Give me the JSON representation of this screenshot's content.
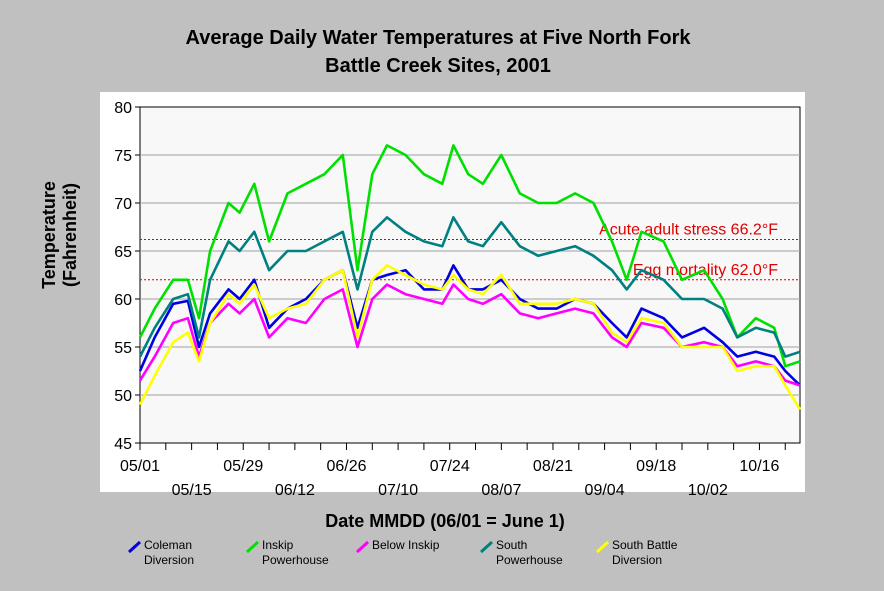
{
  "chart_data": {
    "type": "line",
    "title_line1": "Average Daily Water Temperatures at Five North Fork",
    "title_line2": "Battle Creek Sites, 2001",
    "xlabel": "Date MMDD (06/01 = June 1)",
    "ylabel_line1": "Temperature",
    "ylabel_line2": "(Fahrenheit)",
    "ylim": [
      45,
      80
    ],
    "yticks": [
      45,
      50,
      55,
      60,
      65,
      70,
      75,
      80
    ],
    "xlim": [
      "05/01",
      "10/27"
    ],
    "xticks_upper": [
      "05/01",
      "05/29",
      "06/26",
      "07/24",
      "08/21",
      "09/18",
      "10/16"
    ],
    "xticks_lower": [
      "05/15",
      "06/12",
      "07/10",
      "08/07",
      "09/04",
      "10/02"
    ],
    "grid": true,
    "reference_lines": [
      {
        "label": "Acute adult stress 66.2°F",
        "value": 66.2,
        "color": "#e00000"
      },
      {
        "label": "Egg mortality 62.0°F",
        "value": 62.0,
        "color": "#e00000"
      }
    ],
    "series": [
      {
        "name_line1": "Coleman",
        "name_line2": "Diversion",
        "color": "#0000e0",
        "x": [
          "05/01",
          "05/05",
          "05/10",
          "05/14",
          "05/17",
          "05/20",
          "05/25",
          "05/28",
          "06/01",
          "06/05",
          "06/10",
          "06/15",
          "06/20",
          "06/25",
          "06/29",
          "07/03",
          "07/07",
          "07/12",
          "07/17",
          "07/22",
          "07/25",
          "07/29",
          "08/02",
          "08/07",
          "08/12",
          "08/17",
          "08/22",
          "08/27",
          "09/01",
          "09/06",
          "09/10",
          "09/14",
          "09/20",
          "09/25",
          "10/01",
          "10/06",
          "10/10",
          "10/15",
          "10/20",
          "10/23",
          "10/27"
        ],
        "y": [
          52.5,
          56,
          59.5,
          59.8,
          55,
          58.5,
          61,
          60,
          62,
          57,
          59,
          60,
          62,
          63,
          57,
          62,
          62.5,
          63,
          61,
          61,
          63.5,
          61,
          61,
          62,
          60,
          59,
          59,
          60,
          59.5,
          57.5,
          56,
          59,
          58,
          56,
          57,
          55.5,
          54,
          54.5,
          54,
          52.5,
          51
        ]
      },
      {
        "name_line1": "Inskip",
        "name_line2": "Powerhouse",
        "color": "#00e000",
        "x": [
          "05/01",
          "05/05",
          "05/10",
          "05/14",
          "05/17",
          "05/20",
          "05/25",
          "05/28",
          "06/01",
          "06/05",
          "06/10",
          "06/15",
          "06/20",
          "06/25",
          "06/29",
          "07/03",
          "07/07",
          "07/12",
          "07/17",
          "07/22",
          "07/25",
          "07/29",
          "08/02",
          "08/07",
          "08/12",
          "08/17",
          "08/22",
          "08/27",
          "09/01",
          "09/06",
          "09/10",
          "09/14",
          "09/20",
          "09/25",
          "10/01",
          "10/06",
          "10/10",
          "10/15",
          "10/20",
          "10/23",
          "10/27"
        ],
        "y": [
          56,
          59,
          62,
          62,
          58,
          65,
          70,
          69,
          72,
          66,
          71,
          72,
          73,
          75,
          63,
          73,
          76,
          75,
          73,
          72,
          76,
          73,
          72,
          75,
          71,
          70,
          70,
          71,
          70,
          66,
          62,
          67,
          66,
          62,
          63,
          60,
          56,
          58,
          57,
          53,
          53.5
        ]
      },
      {
        "name_line1": "Below Inskip",
        "name_line2": "",
        "color": "#ff00ff",
        "x": [
          "05/01",
          "05/05",
          "05/10",
          "05/14",
          "05/17",
          "05/20",
          "05/25",
          "05/28",
          "06/01",
          "06/05",
          "06/10",
          "06/15",
          "06/20",
          "06/25",
          "06/29",
          "07/03",
          "07/07",
          "07/12",
          "07/17",
          "07/22",
          "07/25",
          "07/29",
          "08/02",
          "08/07",
          "08/12",
          "08/17",
          "08/22",
          "08/27",
          "09/01",
          "09/06",
          "09/10",
          "09/14",
          "09/20",
          "09/25",
          "10/01",
          "10/06",
          "10/10",
          "10/15",
          "10/20",
          "10/23",
          "10/27"
        ],
        "y": [
          51.5,
          54,
          57.5,
          58,
          54,
          57.5,
          59.5,
          58.5,
          60,
          56,
          58,
          57.5,
          60,
          61,
          55,
          60,
          61.5,
          60.5,
          60,
          59.5,
          61.5,
          60,
          59.5,
          60.5,
          58.5,
          58,
          58.5,
          59,
          58.5,
          56,
          55,
          57.5,
          57,
          55,
          55.5,
          55,
          53,
          53.5,
          53,
          51.5,
          51
        ]
      },
      {
        "name_line1": "South",
        "name_line2": "Powerhouse",
        "color": "#008080",
        "x": [
          "05/01",
          "05/05",
          "05/10",
          "05/14",
          "05/17",
          "05/20",
          "05/25",
          "05/28",
          "06/01",
          "06/05",
          "06/10",
          "06/15",
          "06/20",
          "06/25",
          "06/29",
          "07/03",
          "07/07",
          "07/12",
          "07/17",
          "07/22",
          "07/25",
          "07/29",
          "08/02",
          "08/07",
          "08/12",
          "08/17",
          "08/22",
          "08/27",
          "09/01",
          "09/06",
          "09/10",
          "09/14",
          "09/20",
          "09/25",
          "10/01",
          "10/06",
          "10/10",
          "10/15",
          "10/20",
          "10/23",
          "10/27"
        ],
        "y": [
          54,
          57,
          60,
          60.5,
          56,
          62,
          66,
          65,
          67,
          63,
          65,
          65,
          66,
          67,
          61,
          67,
          68.5,
          67,
          66,
          65.5,
          68.5,
          66,
          65.5,
          68,
          65.5,
          64.5,
          65,
          65.5,
          64.5,
          63,
          61,
          63,
          62,
          60,
          60,
          59,
          56,
          57,
          56.5,
          54,
          54.5
        ]
      },
      {
        "name_line1": "South Battle",
        "name_line2": "Diversion",
        "color": "#ffff00",
        "x": [
          "05/01",
          "05/05",
          "05/10",
          "05/14",
          "05/17",
          "05/20",
          "05/25",
          "05/28",
          "06/01",
          "06/05",
          "06/10",
          "06/15",
          "06/20",
          "06/25",
          "06/29",
          "07/03",
          "07/07",
          "07/12",
          "07/17",
          "07/22",
          "07/25",
          "07/29",
          "08/02",
          "08/07",
          "08/12",
          "08/17",
          "08/22",
          "08/27",
          "09/01",
          "09/06",
          "09/10",
          "09/14",
          "09/20",
          "09/25",
          "10/01",
          "10/06",
          "10/10",
          "10/15",
          "10/20",
          "10/23",
          "10/27"
        ],
        "y": [
          49,
          52,
          55.5,
          56.5,
          53.5,
          57.5,
          60.5,
          59.5,
          61.5,
          58,
          59,
          59.5,
          62,
          63,
          56,
          62,
          63.5,
          62.5,
          61.5,
          61,
          62.5,
          61,
          60.5,
          62.5,
          59.5,
          59.5,
          59.5,
          60,
          59.5,
          56.5,
          55.5,
          58,
          57.5,
          55,
          55,
          55,
          52.5,
          53,
          53,
          51,
          48.5
        ]
      }
    ]
  }
}
